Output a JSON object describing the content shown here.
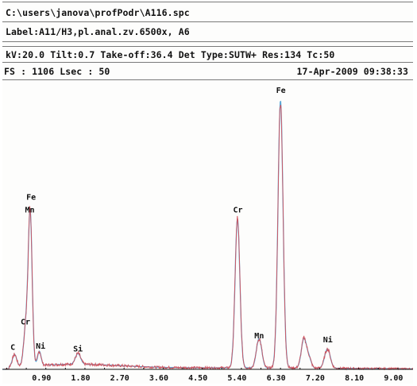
{
  "header": {
    "path": "C:\\users\\janova\\profPodr\\A116.spc",
    "label": "Label:A11/H3,pl.anal.zv.6500x,  A6",
    "params": "kV:20.0 Tilt:0.7 Take-off:36.4  Det Type:SUTW+ Res:134 Tc:50",
    "fs_lsec": "FS : 1106  Lsec : 50",
    "datetime": "17-Apr-2009 09:38:33"
  },
  "colors": {
    "spectrum": "#d2525c",
    "fit": "#5aa7d6",
    "axis": "#111111"
  },
  "chart_data": {
    "type": "line",
    "xlim": [
      0.0,
      9.45
    ],
    "ylim": [
      0,
      1106
    ],
    "x_ticks": [
      "0.90",
      "1.80",
      "2.70",
      "3.60",
      "4.50",
      "5.40",
      "6.30",
      "7.20",
      "8.10",
      "9.00"
    ],
    "series": [
      {
        "peaks": [
          {
            "x": 0.28,
            "height": 48,
            "width": 0.05
          },
          {
            "x": 0.54,
            "height": 150,
            "width": 0.05
          },
          {
            "x": 0.64,
            "height": 590,
            "width": 0.045
          },
          {
            "x": 0.85,
            "height": 55,
            "width": 0.04
          },
          {
            "x": 1.74,
            "height": 42,
            "width": 0.06
          },
          {
            "x": 5.41,
            "height": 580,
            "width": 0.055
          },
          {
            "x": 5.89,
            "height": 90,
            "width": 0.055
          },
          {
            "x": 5.95,
            "height": 40,
            "width": 0.05
          },
          {
            "x": 6.4,
            "height": 1040,
            "width": 0.058
          },
          {
            "x": 6.94,
            "height": 115,
            "width": 0.06
          },
          {
            "x": 7.06,
            "height": 35,
            "width": 0.05
          },
          {
            "x": 7.48,
            "height": 75,
            "width": 0.065
          }
        ]
      }
    ],
    "peak_labels": [
      {
        "text": "C",
        "x": 0.24,
        "y": 75
      },
      {
        "text": "Cr",
        "x": 0.53,
        "y": 175
      },
      {
        "text": "Mn",
        "x": 0.63,
        "y": 610
      },
      {
        "text": "Fe",
        "x": 0.66,
        "y": 660
      },
      {
        "text": "Ni",
        "x": 0.88,
        "y": 80
      },
      {
        "text": "Si",
        "x": 1.74,
        "y": 70
      },
      {
        "text": "Cr",
        "x": 5.42,
        "y": 610
      },
      {
        "text": "Mn",
        "x": 5.91,
        "y": 120
      },
      {
        "text": "Fe",
        "x": 6.41,
        "y": 1075
      },
      {
        "text": "Ni",
        "x": 7.49,
        "y": 105
      }
    ]
  }
}
